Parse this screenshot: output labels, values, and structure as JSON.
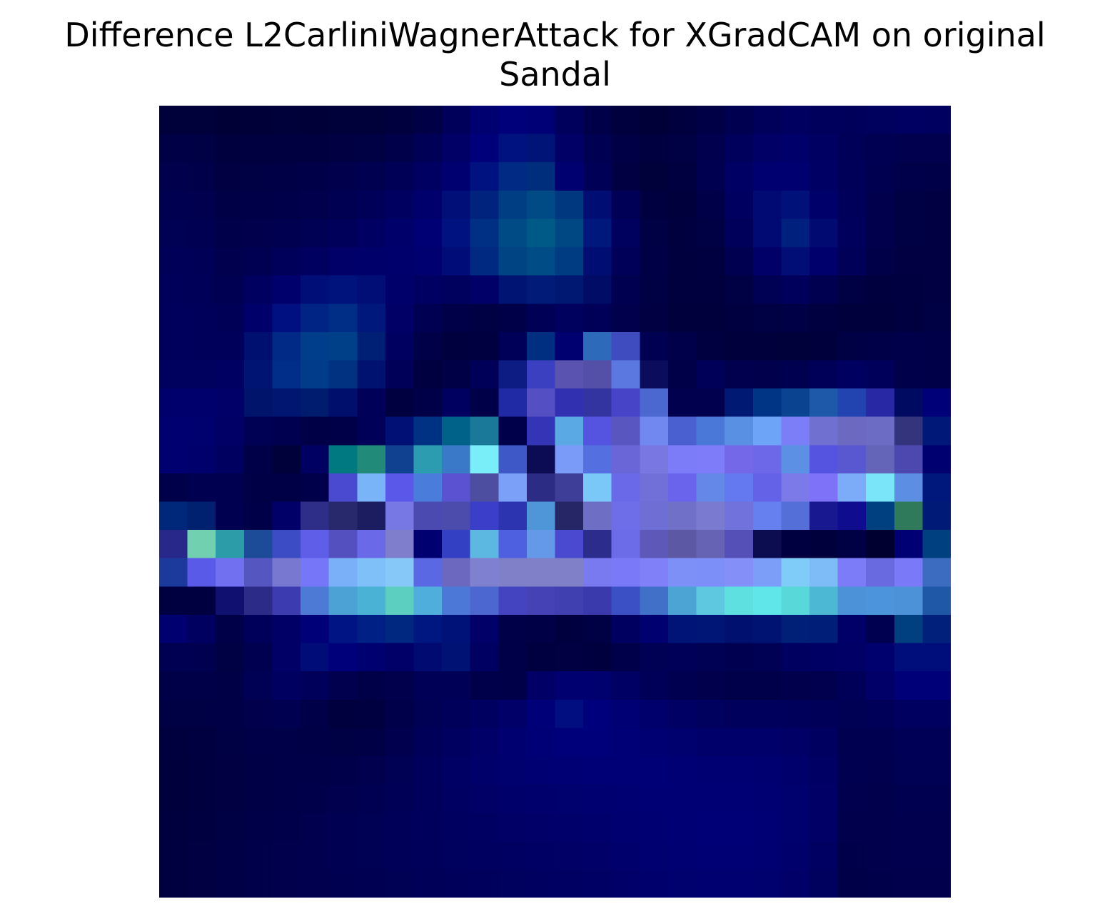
{
  "chart_data": {
    "type": "heatmap",
    "title_lines": [
      "Difference L2CarliniWagnerAttack for XGradCAM on original",
      "Sandal"
    ],
    "axes_visible": false,
    "rows": 28,
    "cols": 28,
    "colors": [
      [
        "#00003a",
        "#00003a",
        "#000036",
        "#000038",
        "#00003a",
        "#000038",
        "#00003a",
        "#00003a",
        "#00003e",
        "#000046",
        "#00005a",
        "#000070",
        "#00007a",
        "#000076",
        "#00005c",
        "#000048",
        "#00003e",
        "#000038",
        "#00003e",
        "#000046",
        "#000050",
        "#00005a",
        "#000060",
        "#00005c",
        "#00005a",
        "#00005e",
        "#000062",
        "#000060"
      ],
      [
        "#000046",
        "#000044",
        "#00003e",
        "#000040",
        "#000040",
        "#000040",
        "#000042",
        "#000044",
        "#00004a",
        "#000056",
        "#000066",
        "#00007a",
        "#001280",
        "#001478",
        "#000066",
        "#000052",
        "#000046",
        "#000040",
        "#000044",
        "#00004e",
        "#00005c",
        "#000066",
        "#00006a",
        "#000062",
        "#000058",
        "#000052",
        "#00004e",
        "#00004e"
      ],
      [
        "#00004c",
        "#00004a",
        "#000042",
        "#000044",
        "#000046",
        "#000048",
        "#00004c",
        "#000050",
        "#000056",
        "#000062",
        "#000070",
        "#001280",
        "#002a84",
        "#002e7c",
        "#000070",
        "#000056",
        "#000042",
        "#00003a",
        "#000040",
        "#000050",
        "#000064",
        "#000070",
        "#000070",
        "#000064",
        "#000058",
        "#000050",
        "#00004a",
        "#000048"
      ],
      [
        "#000050",
        "#00004e",
        "#000046",
        "#000048",
        "#00004a",
        "#00004c",
        "#000052",
        "#000058",
        "#000060",
        "#00006c",
        "#001078",
        "#00247e",
        "#003e84",
        "#004a86",
        "#003880",
        "#000e74",
        "#000056",
        "#000040",
        "#00003c",
        "#000048",
        "#000060",
        "#000a72",
        "#00127a",
        "#00006a",
        "#00005a",
        "#00004c",
        "#000044",
        "#000042"
      ],
      [
        "#000054",
        "#000052",
        "#00004a",
        "#00004c",
        "#000050",
        "#000054",
        "#00005a",
        "#000062",
        "#00006a",
        "#000074",
        "#001280",
        "#003084",
        "#004a86",
        "#005a88",
        "#004884",
        "#00187c",
        "#00005e",
        "#000044",
        "#00003e",
        "#000044",
        "#00005a",
        "#000a72",
        "#00207e",
        "#000a70",
        "#00005c",
        "#00004c",
        "#000044",
        "#000042"
      ],
      [
        "#000058",
        "#000056",
        "#00004e",
        "#000052",
        "#00005a",
        "#000060",
        "#000068",
        "#00006a",
        "#00006c",
        "#000070",
        "#000c78",
        "#002a82",
        "#004484",
        "#004c86",
        "#003c82",
        "#000e74",
        "#000058",
        "#000046",
        "#00003e",
        "#000040",
        "#000050",
        "#000068",
        "#000e76",
        "#00006c",
        "#000058",
        "#000048",
        "#000042",
        "#000042"
      ],
      [
        "#00005a",
        "#000058",
        "#000052",
        "#000060",
        "#00006c",
        "#000e78",
        "#00127c",
        "#000e76",
        "#00006a",
        "#000062",
        "#00005e",
        "#000068",
        "#001474",
        "#001c78",
        "#001872",
        "#000c66",
        "#000050",
        "#000044",
        "#00003e",
        "#00003e",
        "#000044",
        "#000054",
        "#00005c",
        "#000050",
        "#000044",
        "#00003e",
        "#000040",
        "#000042"
      ],
      [
        "#00005c",
        "#00005a",
        "#000056",
        "#00006a",
        "#001080",
        "#002484",
        "#002e86",
        "#00187c",
        "#000066",
        "#000052",
        "#000048",
        "#000044",
        "#000048",
        "#000056",
        "#00005e",
        "#000058",
        "#00004c",
        "#000042",
        "#00003c",
        "#00003c",
        "#000040",
        "#000044",
        "#000046",
        "#000040",
        "#00003c",
        "#00003c",
        "#000040",
        "#000044"
      ],
      [
        "#00005c",
        "#00005a",
        "#00005a",
        "#001070",
        "#002a86",
        "#003e8c",
        "#004088",
        "#002076",
        "#000060",
        "#000048",
        "#00003e",
        "#000040",
        "#000058",
        "#002e80",
        "#000070",
        "#2e6aba",
        "#3e4cc0",
        "#000052",
        "#00004a",
        "#000040",
        "#00003c",
        "#00003c",
        "#00003a",
        "#00003c",
        "#000044",
        "#000048",
        "#00004a",
        "#000048"
      ],
      [
        "#00005e",
        "#00005e",
        "#000062",
        "#001474",
        "#002e88",
        "#003c8a",
        "#003282",
        "#001270",
        "#000058",
        "#000040",
        "#000046",
        "#000058",
        "#0c1c82",
        "#3a40c0",
        "#5a54b0",
        "#5450a8",
        "#5a78e0",
        "#0c0c5c",
        "#000048",
        "#000058",
        "#00004e",
        "#00004c",
        "#000050",
        "#000058",
        "#000060",
        "#00005a",
        "#00004a",
        "#000048"
      ],
      [
        "#00006c",
        "#00006c",
        "#000068",
        "#00146c",
        "#001670",
        "#001c6e",
        "#000e6c",
        "#000058",
        "#000040",
        "#000048",
        "#000060",
        "#000048",
        "#202aa4",
        "#5450c4",
        "#3030b0",
        "#3434a0",
        "#4844c8",
        "#4a68d0",
        "#00004e",
        "#00004e",
        "#001a74",
        "#003484",
        "#0a4490",
        "#1e58a8",
        "#2244b0",
        "#2828a4",
        "#000a60",
        "#000078"
      ],
      [
        "#000070",
        "#00006e",
        "#000066",
        "#000054",
        "#000050",
        "#000046",
        "#000048",
        "#000058",
        "#001074",
        "#003284",
        "#006288",
        "#1a7898",
        "#00004a",
        "#3434b6",
        "#5aa8e4",
        "#5454e0",
        "#5a56c0",
        "#7088f0",
        "#4a60d0",
        "#4a78d8",
        "#5a90e4",
        "#6ea4f8",
        "#7c7ef8",
        "#7070d0",
        "#6c6ac0",
        "#6c6cc4",
        "#34347c",
        "#001878"
      ],
      [
        "#000070",
        "#00006c",
        "#000060",
        "#000048",
        "#00003a",
        "#000062",
        "#007a80",
        "#228a78",
        "#104090",
        "#2c9cb0",
        "#3a78c8",
        "#7aeef8",
        "#3e58c8",
        "#0c0c54",
        "#7a9cf8",
        "#5470e0",
        "#6a66d8",
        "#7878e0",
        "#7c7cf8",
        "#7e7cf8",
        "#7468e8",
        "#6c68e8",
        "#5c90e4",
        "#5454e0",
        "#5a58d0",
        "#6464b8",
        "#4c48b0",
        "#000070"
      ],
      [
        "#00004a",
        "#000050",
        "#000050",
        "#000046",
        "#000046",
        "#00004a",
        "#4a4ad0",
        "#7ab4f8",
        "#5a58e8",
        "#4a7cdc",
        "#5a52d0",
        "#4e4ea0",
        "#7aa0f8",
        "#2c2c84",
        "#3e3e98",
        "#7ac8f8",
        "#6a6ae8",
        "#7070d8",
        "#6a64ec",
        "#6488e8",
        "#6478f0",
        "#6462e6",
        "#7c7ae8",
        "#7e72f8",
        "#7cacf8",
        "#7ae4f8",
        "#5c8ee4",
        "#00187c"
      ],
      [
        "#00287a",
        "#002070",
        "#000050",
        "#000048",
        "#000068",
        "#2e2e88",
        "#28286c",
        "#1c1c60",
        "#7878e4",
        "#4a4ab0",
        "#4c4cac",
        "#3a3ec8",
        "#2c34b0",
        "#4e96d8",
        "#262666",
        "#6e6ec4",
        "#6e6ee8",
        "#6e6ed4",
        "#7070c8",
        "#7a7ad0",
        "#7272dc",
        "#6680f0",
        "#5470d8",
        "#181890",
        "#100c90",
        "#004080",
        "#2e7a5a",
        "#001a78"
      ],
      [
        "#28288a",
        "#70d0b0",
        "#2c9ca8",
        "#1c4c98",
        "#3c4cc4",
        "#5e5ee8",
        "#5450c0",
        "#6a6ae8",
        "#7e7ecc",
        "#000070",
        "#3440c4",
        "#5cb8e0",
        "#4e60e0",
        "#6498e8",
        "#4a4ad0",
        "#2c2c8c",
        "#6c6ce8",
        "#5e58b8",
        "#5c58a4",
        "#6662b4",
        "#5450b8",
        "#0c0c50",
        "#000040",
        "#00003c",
        "#000044",
        "#000030",
        "#000074",
        "#004080"
      ],
      [
        "#1c3a9c",
        "#5a5ae8",
        "#7070f0",
        "#5656c0",
        "#7878d0",
        "#7676f8",
        "#7ab0f8",
        "#80c0f8",
        "#86c8f8",
        "#5a68e4",
        "#6c68c0",
        "#8080d0",
        "#8080c8",
        "#8080c8",
        "#8080c8",
        "#7a7af0",
        "#7a7af8",
        "#8080f8",
        "#7c90f8",
        "#7c8ef8",
        "#8490f8",
        "#7c9ef8",
        "#80ccf8",
        "#7ebcf8",
        "#7c7cf8",
        "#6a6ae0",
        "#7a7af8",
        "#3c6cc0"
      ],
      [
        "#000040",
        "#000040",
        "#101070",
        "#2c2c88",
        "#3c3cb0",
        "#4c7ad4",
        "#4ca2d4",
        "#4ab2d4",
        "#5ccfc0",
        "#50aedc",
        "#4c78d8",
        "#4c68d0",
        "#4444c0",
        "#4442b4",
        "#4040b0",
        "#3a3aac",
        "#3a50c4",
        "#4070c8",
        "#4ca4d4",
        "#5ec8e0",
        "#5ee0e0",
        "#60e6e8",
        "#58d8d8",
        "#4cb8d4",
        "#4c92d8",
        "#4c94dc",
        "#4c92d8",
        "#2058a8"
      ],
      [
        "#000070",
        "#000060",
        "#000048",
        "#00005a",
        "#000066",
        "#000078",
        "#001484",
        "#002086",
        "#002880",
        "#001680",
        "#001278",
        "#000068",
        "#000048",
        "#000046",
        "#00003e",
        "#000044",
        "#000060",
        "#000070",
        "#001478",
        "#001676",
        "#00106e",
        "#001272",
        "#002078",
        "#001e78",
        "#000068",
        "#000050",
        "#004080",
        "#00207c"
      ],
      [
        "#000052",
        "#000050",
        "#000044",
        "#000050",
        "#000066",
        "#000c78",
        "#00007a",
        "#000070",
        "#000068",
        "#000a70",
        "#001274",
        "#000062",
        "#000048",
        "#000040",
        "#000042",
        "#00003e",
        "#00004a",
        "#000054",
        "#000058",
        "#000054",
        "#000050",
        "#000054",
        "#000060",
        "#000064",
        "#000066",
        "#00006e",
        "#000e7c",
        "#000e7c"
      ],
      [
        "#000048",
        "#000048",
        "#000046",
        "#000054",
        "#000060",
        "#00005a",
        "#00004e",
        "#000048",
        "#00004c",
        "#000056",
        "#000056",
        "#00004a",
        "#000048",
        "#000066",
        "#000070",
        "#00006e",
        "#000064",
        "#000058",
        "#000050",
        "#00004c",
        "#00004a",
        "#00004a",
        "#00004c",
        "#00004e",
        "#000058",
        "#000068",
        "#000078",
        "#000078"
      ],
      [
        "#000044",
        "#000044",
        "#000046",
        "#00004c",
        "#000050",
        "#000048",
        "#00003e",
        "#000040",
        "#00004a",
        "#000054",
        "#00005a",
        "#000060",
        "#000068",
        "#000078",
        "#000e80",
        "#00007c",
        "#000074",
        "#00006c",
        "#000064",
        "#00005e",
        "#00005c",
        "#00005c",
        "#00005a",
        "#000058",
        "#000054",
        "#000058",
        "#000060",
        "#000060"
      ],
      [
        "#00003e",
        "#000040",
        "#000044",
        "#000048",
        "#000048",
        "#000046",
        "#000044",
        "#000046",
        "#00004e",
        "#000058",
        "#000060",
        "#000068",
        "#000070",
        "#000076",
        "#00007a",
        "#00007a",
        "#000076",
        "#000072",
        "#00006e",
        "#00006a",
        "#00006a",
        "#00006a",
        "#000066",
        "#000060",
        "#000050",
        "#000050",
        "#000056",
        "#000056"
      ],
      [
        "#00003c",
        "#00003e",
        "#000042",
        "#000046",
        "#000048",
        "#000048",
        "#00004a",
        "#00004e",
        "#000054",
        "#00005c",
        "#000064",
        "#00006a",
        "#00006e",
        "#000072",
        "#000074",
        "#000076",
        "#000076",
        "#000076",
        "#000074",
        "#000072",
        "#000072",
        "#000070",
        "#00006c",
        "#000064",
        "#000050",
        "#00004e",
        "#000054",
        "#000054"
      ],
      [
        "#00003c",
        "#00003e",
        "#000042",
        "#000046",
        "#000048",
        "#00004a",
        "#00004e",
        "#000052",
        "#000056",
        "#00005c",
        "#000062",
        "#000066",
        "#00006a",
        "#00006c",
        "#00006e",
        "#000070",
        "#000072",
        "#000074",
        "#000074",
        "#000074",
        "#000074",
        "#000072",
        "#00006e",
        "#000066",
        "#00004e",
        "#00004c",
        "#000050",
        "#000050"
      ],
      [
        "#00003e",
        "#000040",
        "#000044",
        "#000048",
        "#00004a",
        "#00004e",
        "#000052",
        "#000054",
        "#000058",
        "#00005c",
        "#000060",
        "#000062",
        "#000066",
        "#000068",
        "#00006a",
        "#00006c",
        "#000070",
        "#000072",
        "#000074",
        "#000076",
        "#000076",
        "#000074",
        "#00006e",
        "#000066",
        "#00004c",
        "#00004c",
        "#00004e",
        "#00004e"
      ],
      [
        "#000040",
        "#000042",
        "#000046",
        "#00004a",
        "#00004c",
        "#00004e",
        "#000052",
        "#000054",
        "#000058",
        "#00005a",
        "#00005e",
        "#000060",
        "#000062",
        "#000064",
        "#000066",
        "#000068",
        "#00006c",
        "#000070",
        "#000072",
        "#000074",
        "#000074",
        "#000072",
        "#00006c",
        "#000062",
        "#00004a",
        "#00004c",
        "#00004e",
        "#00004e"
      ],
      [
        "#000040",
        "#000042",
        "#000046",
        "#00004a",
        "#00004c",
        "#00004e",
        "#000050",
        "#000052",
        "#000054",
        "#000058",
        "#00005a",
        "#00005c",
        "#00005e",
        "#000060",
        "#000062",
        "#000064",
        "#000068",
        "#00006c",
        "#00006e",
        "#000070",
        "#000070",
        "#00006e",
        "#000068",
        "#00005e",
        "#000048",
        "#00004a",
        "#00004c",
        "#00004c"
      ]
    ]
  }
}
